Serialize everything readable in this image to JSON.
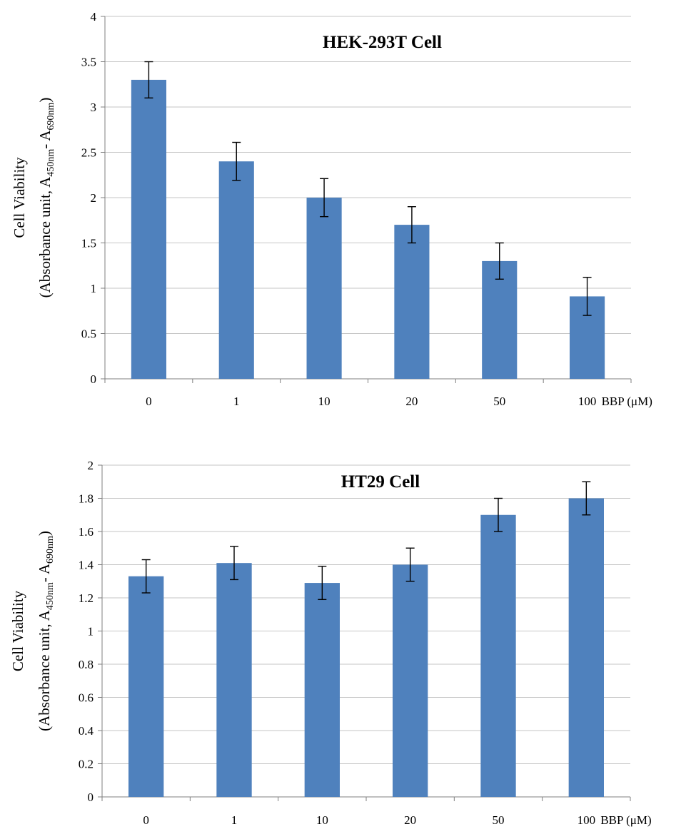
{
  "chart_data": [
    {
      "type": "bar",
      "title": "HEK-293T Cell",
      "ylabel_line1": "Cell Viability",
      "ylabel_line2": {
        "pre": "(Absorbance unit, A",
        "sub1": "450nm",
        "mid": "- A",
        "sub2": "690nm",
        "post": ")"
      },
      "xunit": "BBP  (μM)",
      "categories": [
        "0",
        "1",
        "10",
        "20",
        "50",
        "100"
      ],
      "values": [
        3.3,
        2.4,
        2.0,
        1.7,
        1.3,
        0.91
      ],
      "errors": [
        0.2,
        0.21,
        0.21,
        0.2,
        0.2,
        0.21
      ],
      "ylim": [
        0,
        4
      ],
      "yticks": [
        "0",
        "0.5",
        "1",
        "1.5",
        "2",
        "2.5",
        "3",
        "3.5",
        "4"
      ],
      "grid": true,
      "color": "#4f81bd"
    },
    {
      "type": "bar",
      "title": "HT29 Cell",
      "ylabel_line1": "Cell Viability",
      "ylabel_line2": {
        "pre": "(Absorbance unit, A",
        "sub1": "450nm",
        "mid": "- A",
        "sub2": "690nm",
        "post": ")"
      },
      "xunit": "BBP  (μM)",
      "categories": [
        "0",
        "1",
        "10",
        "20",
        "50",
        "100"
      ],
      "values": [
        1.33,
        1.41,
        1.29,
        1.4,
        1.7,
        1.8
      ],
      "errors": [
        0.1,
        0.1,
        0.1,
        0.1,
        0.1,
        0.1
      ],
      "ylim": [
        0,
        2
      ],
      "yticks": [
        "0",
        "0.2",
        "0.4",
        "0.6",
        "0.8",
        "1",
        "1.2",
        "1.4",
        "1.6",
        "1.8",
        "2"
      ],
      "grid": true,
      "color": "#4f81bd"
    }
  ]
}
